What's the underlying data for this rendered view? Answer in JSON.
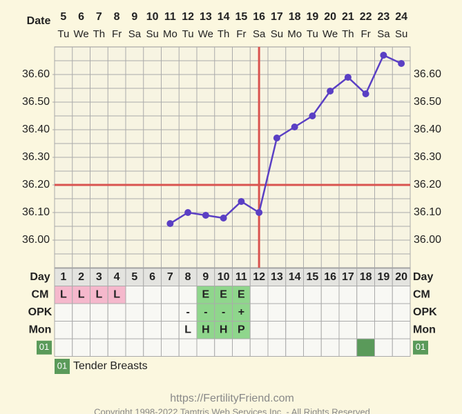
{
  "header": {
    "date_label": "Date",
    "dates": [
      5,
      6,
      7,
      8,
      9,
      10,
      11,
      12,
      13,
      14,
      15,
      16,
      17,
      18,
      19,
      20,
      21,
      22,
      23,
      24
    ],
    "weekdays": [
      "Tu",
      "We",
      "Th",
      "Fr",
      "Sa",
      "Su",
      "Mo",
      "Tu",
      "We",
      "Th",
      "Fr",
      "Sa",
      "Su",
      "Mo",
      "Tu",
      "We",
      "Th",
      "Fr",
      "Sa",
      "Su"
    ]
  },
  "chart_data": {
    "type": "line",
    "categories": [
      1,
      2,
      3,
      4,
      5,
      6,
      7,
      8,
      9,
      10,
      11,
      12,
      13,
      14,
      15,
      16,
      17,
      18,
      19,
      20
    ],
    "values": [
      null,
      null,
      null,
      null,
      null,
      null,
      36.06,
      36.1,
      36.09,
      36.08,
      36.14,
      36.1,
      36.37,
      36.41,
      36.45,
      36.54,
      36.59,
      36.53,
      36.67,
      36.64
    ],
    "color": "#5a3fc4",
    "ylim": [
      35.9,
      36.7
    ],
    "yticks": [
      {
        "value": 36.0,
        "label": "36.00"
      },
      {
        "value": 36.1,
        "label": "36.10"
      },
      {
        "value": 36.2,
        "label": "36.20"
      },
      {
        "value": 36.3,
        "label": "36.30"
      },
      {
        "value": 36.4,
        "label": "36.40"
      },
      {
        "value": 36.5,
        "label": "36.50"
      },
      {
        "value": 36.6,
        "label": "36.60"
      }
    ],
    "ygrid": [
      35.95,
      36.0,
      36.05,
      36.1,
      36.15,
      36.2,
      36.25,
      36.3,
      36.35,
      36.4,
      36.45,
      36.5,
      36.55,
      36.6,
      36.65
    ],
    "coverline": 36.2,
    "ovulation_day": 12,
    "marker_color": "#d9534f",
    "grid": true
  },
  "table": {
    "row_labels": [
      "Day",
      "CM",
      "OPK",
      "Mon"
    ],
    "cm": [
      "L",
      "L",
      "L",
      "L",
      null,
      null,
      null,
      null,
      "E",
      "E",
      "E",
      null,
      null,
      null,
      null,
      null,
      null,
      null,
      null,
      null
    ],
    "opk": [
      null,
      null,
      null,
      null,
      null,
      null,
      null,
      "-",
      "-",
      "-",
      "+",
      null,
      null,
      null,
      null,
      null,
      null,
      null,
      null,
      null
    ],
    "mon": [
      null,
      null,
      null,
      null,
      null,
      null,
      null,
      "L",
      "H",
      "H",
      "P",
      null,
      null,
      null,
      null,
      null,
      null,
      null,
      null,
      null
    ],
    "fertile_days": [
      9,
      10,
      11
    ],
    "symptom_code": "01",
    "symptom_days": [
      18
    ]
  },
  "legend": {
    "code": "01",
    "label": "Tender Breasts"
  },
  "footer": {
    "url": "https://FertilityFriend.com",
    "copyright": "Copyright 1998-2022 Tamtris Web Services Inc. - All Rights Reserved"
  }
}
